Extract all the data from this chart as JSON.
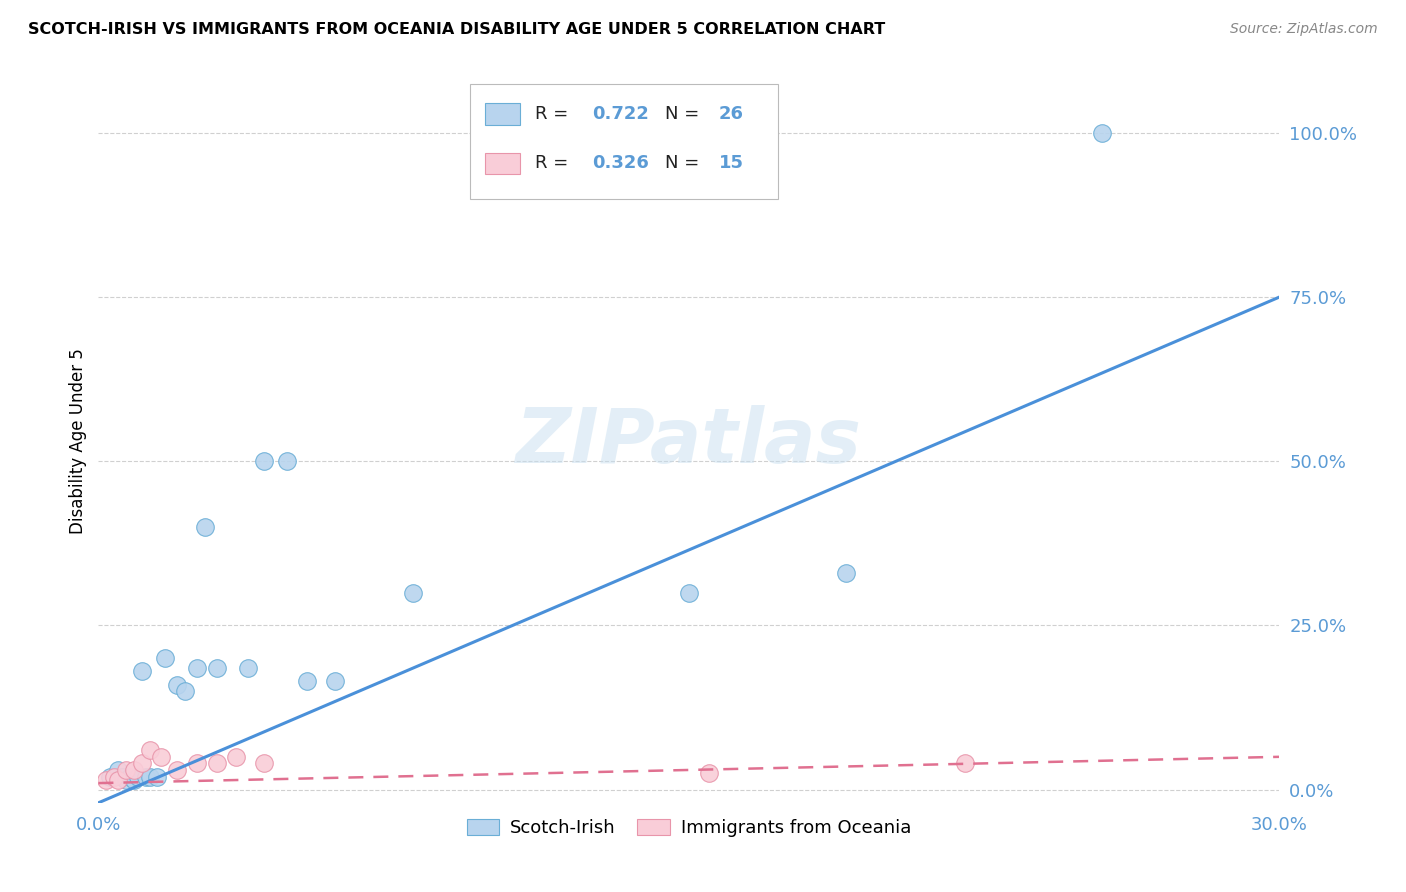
{
  "title": "SCOTCH-IRISH VS IMMIGRANTS FROM OCEANIA DISABILITY AGE UNDER 5 CORRELATION CHART",
  "source": "Source: ZipAtlas.com",
  "ylabel": "Disability Age Under 5",
  "xlim": [
    0.0,
    0.3
  ],
  "ylim": [
    -0.02,
    1.08
  ],
  "ytick_values": [
    0.0,
    0.25,
    0.5,
    0.75,
    1.0
  ],
  "ytick_labels": [
    "0.0%",
    "25.0%",
    "50.0%",
    "75.0%",
    "100.0%"
  ],
  "xtick_values": [
    0.0,
    0.3
  ],
  "xtick_labels": [
    "0.0%",
    "30.0%"
  ],
  "grid_color": "#d0d0d0",
  "background_color": "#ffffff",
  "watermark": "ZIPatlas",
  "tick_color": "#5b9bd5",
  "scotch_irish": {
    "R": 0.722,
    "N": 26,
    "scatter_color": "#b8d4ee",
    "edge_color": "#6aaed6",
    "line_color": "#4a90d9",
    "x": [
      0.003,
      0.005,
      0.006,
      0.007,
      0.008,
      0.009,
      0.01,
      0.011,
      0.012,
      0.013,
      0.015,
      0.017,
      0.02,
      0.022,
      0.025,
      0.027,
      0.03,
      0.038,
      0.042,
      0.048,
      0.053,
      0.06,
      0.08,
      0.15,
      0.19,
      0.255
    ],
    "y": [
      0.02,
      0.03,
      0.02,
      0.015,
      0.02,
      0.015,
      0.02,
      0.18,
      0.02,
      0.02,
      0.02,
      0.2,
      0.16,
      0.15,
      0.185,
      0.4,
      0.185,
      0.185,
      0.5,
      0.5,
      0.165,
      0.165,
      0.3,
      0.3,
      0.33,
      1.0
    ]
  },
  "oceania": {
    "R": 0.326,
    "N": 15,
    "scatter_color": "#f9cdd8",
    "edge_color": "#e895aa",
    "line_color": "#e07090",
    "x": [
      0.002,
      0.004,
      0.005,
      0.007,
      0.009,
      0.011,
      0.013,
      0.016,
      0.02,
      0.025,
      0.03,
      0.035,
      0.042,
      0.155,
      0.22
    ],
    "y": [
      0.015,
      0.02,
      0.015,
      0.03,
      0.03,
      0.04,
      0.06,
      0.05,
      0.03,
      0.04,
      0.04,
      0.05,
      0.04,
      0.025,
      0.04
    ]
  },
  "legend_label_blue": "Scotch-Irish",
  "legend_label_pink": "Immigrants from Oceania"
}
